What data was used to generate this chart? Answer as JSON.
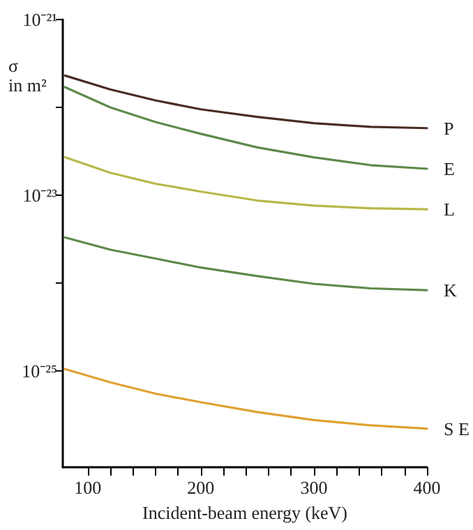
{
  "chart_data": {
    "type": "line",
    "xlabel": "Incident-beam energy (keV)",
    "ylabel": "σ\nin m²",
    "log": "y",
    "grid": false,
    "legend": false,
    "marker": "none",
    "line_style": "solid",
    "x": [
      80,
      120,
      160,
      200,
      250,
      300,
      350,
      400
    ],
    "xlim": [
      78,
      400
    ],
    "xticks": [
      100,
      {
        "value": 120,
        "label": null
      },
      {
        "value": 140,
        "label": null
      },
      {
        "value": 160,
        "label": null
      },
      {
        "value": 180,
        "label": null
      },
      200,
      {
        "value": 220,
        "label": null
      },
      {
        "value": 240,
        "label": null
      },
      {
        "value": 260,
        "label": null
      },
      {
        "value": 280,
        "label": null
      },
      300,
      {
        "value": 320,
        "label": null
      },
      {
        "value": 340,
        "label": null
      },
      {
        "value": 360,
        "label": null
      },
      {
        "value": 380,
        "label": null
      },
      400
    ],
    "ylim": [
      8e-27,
      1e-21
    ],
    "yticks": [
      {
        "value": 1e-21,
        "label": "10⁻²¹"
      },
      {
        "value": 1e-22,
        "label": null
      },
      {
        "value": 1e-23,
        "label": "10⁻²³"
      },
      {
        "value": 1e-24,
        "label": null
      },
      {
        "value": 1e-25,
        "label": "10⁻²⁵"
      }
    ],
    "series": [
      {
        "name": "P",
        "color": "#4a2c24",
        "values": [
          2.3e-22,
          1.6e-22,
          1.2e-22,
          9.5e-23,
          7.8e-23,
          6.6e-23,
          6e-23,
          5.8e-23
        ]
      },
      {
        "name": "E",
        "color": "#5e8a4a",
        "values": [
          1.7e-22,
          1e-22,
          6.8e-23,
          5e-23,
          3.5e-23,
          2.7e-23,
          2.2e-23,
          2e-23
        ]
      },
      {
        "name": "L",
        "color": "#b8b84a",
        "values": [
          2.7e-23,
          1.8e-23,
          1.35e-23,
          1.1e-23,
          8.7e-24,
          7.6e-24,
          7.1e-24,
          6.9e-24
        ]
      },
      {
        "name": "K",
        "color": "#5e8a4a",
        "values": [
          3.3e-24,
          2.4e-24,
          1.9e-24,
          1.5e-24,
          1.2e-24,
          9.8e-25,
          8.7e-25,
          8.3e-25
        ]
      },
      {
        "name": "S E",
        "color": "#e0a030",
        "values": [
          1.05e-25,
          7.4e-26,
          5.5e-26,
          4.4e-26,
          3.4e-26,
          2.75e-26,
          2.4e-26,
          2.2e-26
        ]
      }
    ]
  }
}
